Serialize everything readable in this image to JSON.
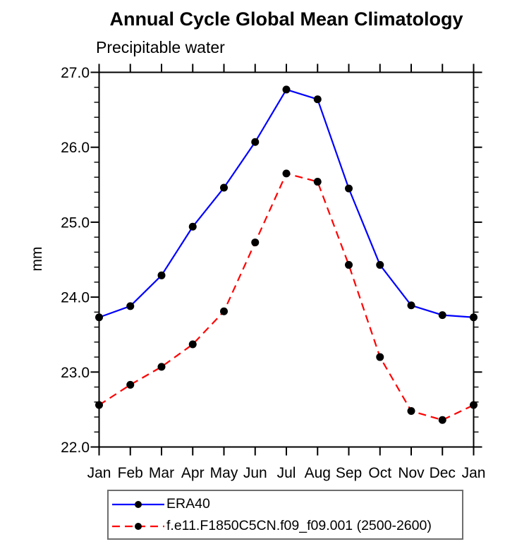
{
  "header": {
    "title": "Annual Cycle Global Mean Climatology",
    "subtitle": "Precipitable water"
  },
  "axes": {
    "y_label": "mm",
    "y_tick_labels": [
      "27.0",
      "26.0",
      "25.0",
      "24.0",
      "23.0",
      "22.0"
    ],
    "x_tick_labels": [
      "Jan",
      "Feb",
      "Mar",
      "Apr",
      "May",
      "Jun",
      "Jul",
      "Aug",
      "Sep",
      "Oct",
      "Nov",
      "Dec",
      "Jan"
    ]
  },
  "chart_data": {
    "type": "line",
    "title": "Annual Cycle Global Mean Climatology",
    "subtitle": "Precipitable water",
    "xlabel": "",
    "ylabel": "mm",
    "ylim": [
      22.0,
      27.0
    ],
    "y_major_step": 1.0,
    "y_minor_step": 0.2,
    "grid": false,
    "legend_position": "bottom",
    "categories": [
      "Jan",
      "Feb",
      "Mar",
      "Apr",
      "May",
      "Jun",
      "Jul",
      "Aug",
      "Sep",
      "Oct",
      "Nov",
      "Dec",
      "Jan"
    ],
    "series": [
      {
        "name": "ERA40",
        "color": "#0000ff",
        "line_style": "solid",
        "marker": "circle",
        "marker_color": "#000000",
        "values": [
          23.73,
          23.88,
          24.29,
          24.94,
          25.46,
          26.07,
          26.77,
          26.64,
          25.45,
          24.43,
          23.89,
          23.76,
          23.73
        ]
      },
      {
        "name": "f.e11.F1850C5CN.f09_f09.001 (2500-2600)",
        "color": "#ff0000",
        "line_style": "dashed",
        "marker": "circle",
        "marker_color": "#000000",
        "values": [
          22.56,
          22.83,
          23.07,
          23.37,
          23.81,
          24.73,
          25.65,
          25.54,
          24.43,
          23.2,
          22.48,
          22.36,
          22.56
        ]
      }
    ],
    "frame_color": "#000000"
  }
}
